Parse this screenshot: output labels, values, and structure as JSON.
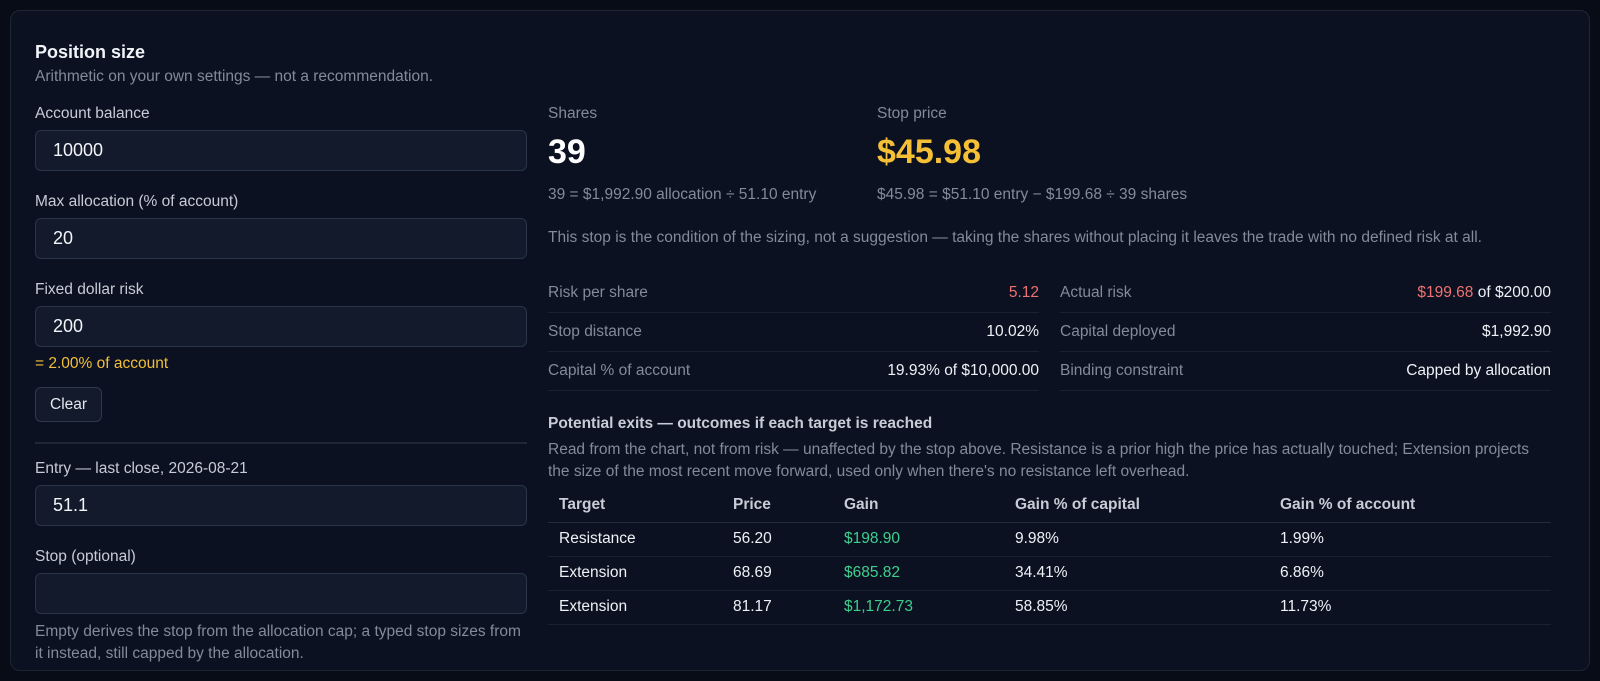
{
  "header": {
    "title": "Position size",
    "subtitle": "Arithmetic on your own settings — not a recommendation."
  },
  "form": {
    "account_balance": {
      "label": "Account balance",
      "value": "10000"
    },
    "max_allocation": {
      "label": "Max allocation (% of account)",
      "value": "20"
    },
    "fixed_risk": {
      "label": "Fixed dollar risk",
      "value": "200",
      "note": "= 2.00% of account"
    },
    "clear_label": "Clear",
    "entry": {
      "label": "Entry — last close, 2026-08-21",
      "value": "51.1"
    },
    "stop": {
      "label": "Stop (optional)",
      "value": "",
      "help": "Empty derives the stop from the allocation cap; a typed stop sizes from it instead, still capped by the allocation."
    }
  },
  "results": {
    "shares": {
      "label": "Shares",
      "value": "39",
      "formula": "39 = $1,992.90 allocation ÷ 51.10 entry"
    },
    "stop_price": {
      "label": "Stop price",
      "value": "$45.98",
      "formula": "$45.98 = $51.10 entry − $199.68 ÷ 39 shares"
    },
    "warning": "This stop is the condition of the sizing, not a suggestion — taking the shares without placing it leaves the trade with no defined risk at all."
  },
  "metrics": {
    "risk_per_share": {
      "label": "Risk per share",
      "value": "5.12"
    },
    "actual_risk": {
      "label": "Actual risk",
      "value": "$199.68",
      "suffix": " of $200.00"
    },
    "stop_distance": {
      "label": "Stop distance",
      "value": "10.02%"
    },
    "capital_deployed": {
      "label": "Capital deployed",
      "value": "$1,992.90"
    },
    "capital_pct": {
      "label": "Capital % of account",
      "value": "19.93% of $10,000.00"
    },
    "binding": {
      "label": "Binding constraint",
      "value": "Capped by allocation"
    }
  },
  "exits": {
    "title": "Potential exits — outcomes if each target is reached",
    "description": "Read from the chart, not from risk — unaffected by the stop above. Resistance is a prior high the price has actually touched; Extension projects the size of the most recent move forward, used only when there's no resistance left overhead.",
    "columns": [
      "Target",
      "Price",
      "Gain",
      "Gain % of capital",
      "Gain % of account"
    ],
    "rows": [
      {
        "target": "Resistance",
        "price": "56.20",
        "gain": "$198.90",
        "gain_capital": "9.98%",
        "gain_account": "1.99%"
      },
      {
        "target": "Extension",
        "price": "68.69",
        "gain": "$685.82",
        "gain_capital": "34.41%",
        "gain_account": "6.86%"
      },
      {
        "target": "Extension",
        "price": "81.17",
        "gain": "$1,172.73",
        "gain_capital": "58.85%",
        "gain_account": "11.73%"
      }
    ]
  },
  "colors": {
    "accent_yellow": "#f5bf36",
    "loss_red": "#f07171",
    "gain_green": "#3ecf8e",
    "background": "#0b1120"
  }
}
